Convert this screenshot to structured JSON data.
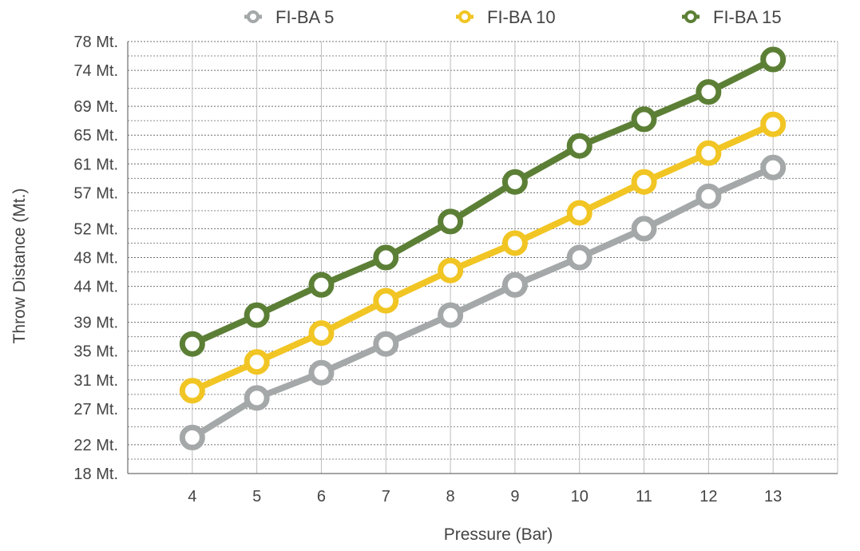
{
  "chart_data": {
    "type": "line",
    "title": "",
    "xlabel": "Pressure (Bar)",
    "ylabel": "Throw Distance (Mt.)",
    "x": [
      4,
      5,
      6,
      7,
      8,
      9,
      10,
      11,
      12,
      13
    ],
    "x_tick_labels": [
      "4",
      "5",
      "6",
      "7",
      "8",
      "9",
      "10",
      "11",
      "12",
      "13"
    ],
    "y_tick_labels": [
      "78 Mt.",
      "74 Mt.",
      "69 Mt.",
      "65 Mt.",
      "61 Mt.",
      "57 Mt.",
      "52 Mt.",
      "48 Mt.",
      "44 Mt.",
      "39 Mt.",
      "35 Mt.",
      "31 Mt.",
      "27 Mt.",
      "22 Mt.",
      "18 Mt."
    ],
    "y_ticks": [
      78,
      74,
      69,
      65,
      61,
      57,
      52,
      48,
      44,
      39,
      35,
      31,
      27,
      22,
      18
    ],
    "ylim": [
      18,
      78
    ],
    "xlim": [
      3,
      14
    ],
    "grid": true,
    "legend_position": "top",
    "series": [
      {
        "name": "FI-BA 5",
        "color": "#a4a8a9",
        "values": [
          23,
          28.5,
          32,
          36,
          40,
          44.2,
          48,
          52,
          56.5,
          60.5
        ]
      },
      {
        "name": "FI-BA 10",
        "color": "#f1c523",
        "values": [
          29.5,
          33.5,
          37.5,
          42,
          46.2,
          50,
          54.2,
          58.5,
          62.5,
          66.5
        ]
      },
      {
        "name": "FI-BA 15",
        "color": "#5c7f36",
        "values": [
          36,
          40,
          44.2,
          48,
          53,
          58.5,
          63.5,
          67.2,
          71,
          75.5
        ]
      }
    ]
  }
}
